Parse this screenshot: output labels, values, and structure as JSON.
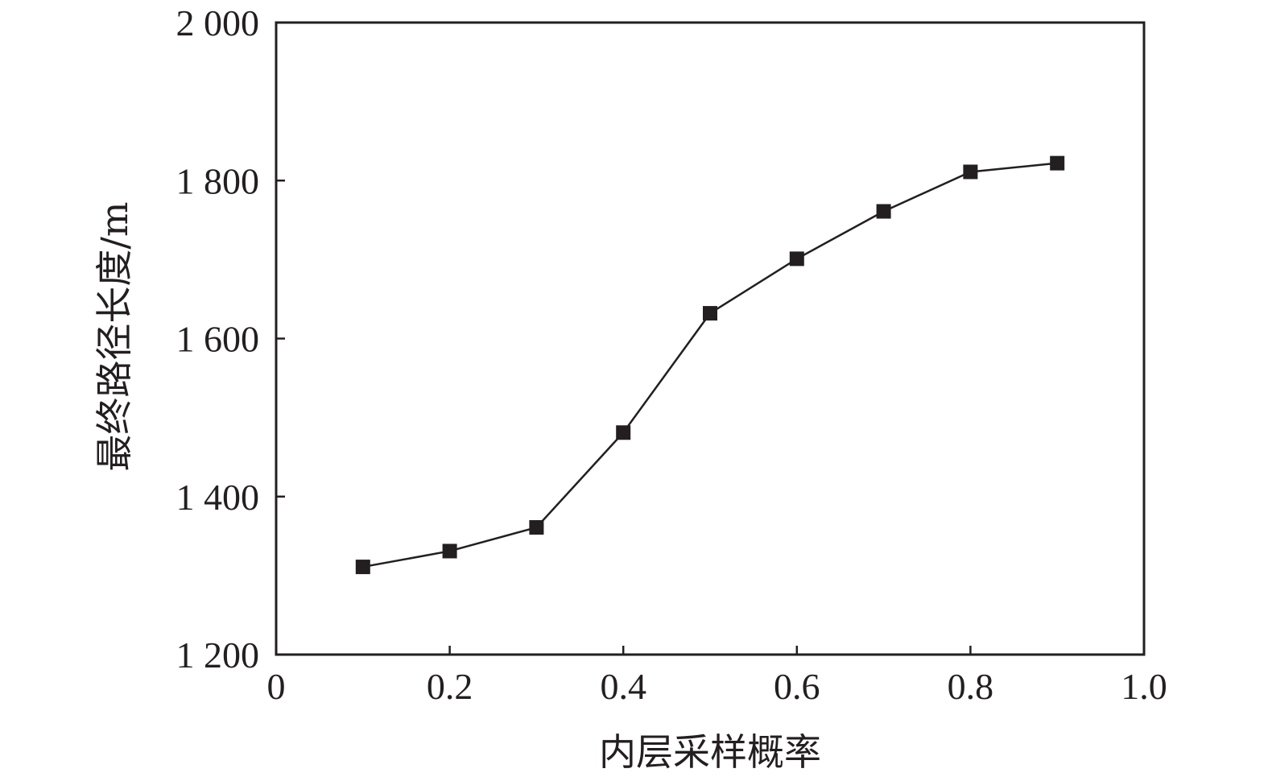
{
  "chart_data": {
    "type": "line",
    "xlabel": "内层采样概率",
    "ylabel": "最终路径长度/m",
    "xlim": [
      0,
      1.0
    ],
    "ylim": [
      1200,
      2000
    ],
    "x_ticks": [
      0,
      0.2,
      0.4,
      0.6,
      0.8,
      1.0
    ],
    "x_tick_labels": [
      "0",
      "0.2",
      "0.4",
      "0.6",
      "0.8",
      "1.0"
    ],
    "y_ticks": [
      1200,
      1400,
      1600,
      1800,
      2000
    ],
    "y_tick_labels": [
      "1 200",
      "1 400",
      "1 600",
      "1 800",
      "2 000"
    ],
    "grid": false,
    "legend": "none",
    "series": [
      {
        "x": [
          0.1,
          0.2,
          0.3,
          0.4,
          0.5,
          0.6,
          0.7,
          0.8,
          0.9
        ],
        "values": [
          1311,
          1331,
          1361,
          1481,
          1632,
          1701,
          1761,
          1811,
          1822
        ],
        "marker": "square",
        "color": "#231f20"
      }
    ]
  }
}
